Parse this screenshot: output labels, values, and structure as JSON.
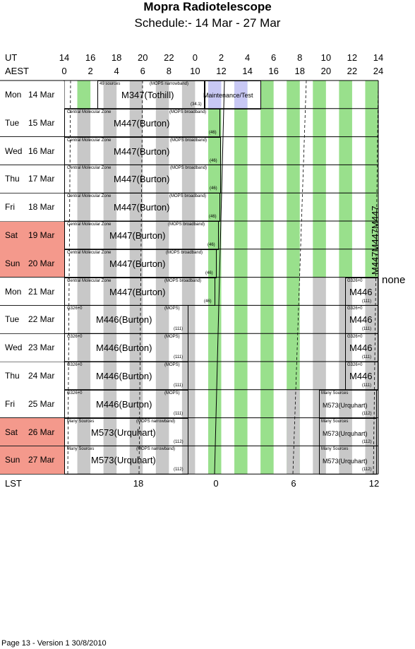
{
  "title": "Mopra Radiotelescope",
  "subtitle": "Schedule:- 14 Mar - 27 Mar",
  "ut_label": "UT",
  "aest_label": "AEST",
  "lst_label": "LST",
  "ut_ticks": [
    "14",
    "16",
    "18",
    "20",
    "22",
    "0",
    "2",
    "4",
    "6",
    "8",
    "10",
    "12",
    "14"
  ],
  "aest_ticks": [
    "0",
    "2",
    "4",
    "6",
    "8",
    "10",
    "12",
    "14",
    "16",
    "18",
    "20",
    "22",
    "24"
  ],
  "lst_ticks": [
    "18",
    "0",
    "6",
    "12"
  ],
  "days": [
    {
      "day": "Mon",
      "date": "14 Mar",
      "weekend": false
    },
    {
      "day": "Tue",
      "date": "15 Mar",
      "weekend": false
    },
    {
      "day": "Wed",
      "date": "16 Mar",
      "weekend": false
    },
    {
      "day": "Thu",
      "date": "17 Mar",
      "weekend": false
    },
    {
      "day": "Fri",
      "date": "18 Mar",
      "weekend": false
    },
    {
      "day": "Sat",
      "date": "19 Mar",
      "weekend": true
    },
    {
      "day": "Sun",
      "date": "20 Mar",
      "weekend": true
    },
    {
      "day": "Mon",
      "date": "21 Mar",
      "weekend": false
    },
    {
      "day": "Tue",
      "date": "22 Mar",
      "weekend": false
    },
    {
      "day": "Wed",
      "date": "23 Mar",
      "weekend": false
    },
    {
      "day": "Thu",
      "date": "24 Mar",
      "weekend": false
    },
    {
      "day": "Fri",
      "date": "25 Mar",
      "weekend": false
    },
    {
      "day": "Sat",
      "date": "26 Mar",
      "weekend": true
    },
    {
      "day": "Sun",
      "date": "27 Mar",
      "weekend": true
    }
  ],
  "row0": {
    "source": "49 sources",
    "mode": "(MOPS narrowband)",
    "project": "M347(Tothill)",
    "number": "(34.1)",
    "maint": "Maintenance/Test"
  },
  "cmz": {
    "source": "Central Molecular Zone",
    "mode": "(MOPS broadband)",
    "project": "M447(Burton)",
    "number": "(46)"
  },
  "g326": {
    "source": "G326+0",
    "mode": "(MOPS)",
    "project": "M446(Burton)",
    "number": "(111)"
  },
  "g326_late": {
    "source": "G326+0",
    "project": "M446",
    "number": "(111)"
  },
  "many": {
    "source": "Many Sources",
    "mode": "(MOPS narrowband)",
    "project": "M573(Urquhart)",
    "number": "(112)"
  },
  "many_late": {
    "source": "Many Sources",
    "project": "M573(Urquhart)",
    "number": "(112)"
  },
  "vertical_label": "M447M447M447",
  "none_label": "none",
  "footer": "Page 13 - Version 1  30/8/2010",
  "colors": {
    "green": "#99e08c",
    "gray": "#c8c8c8",
    "lavender": "#c8c8f4",
    "weekend": "#f4998c"
  }
}
